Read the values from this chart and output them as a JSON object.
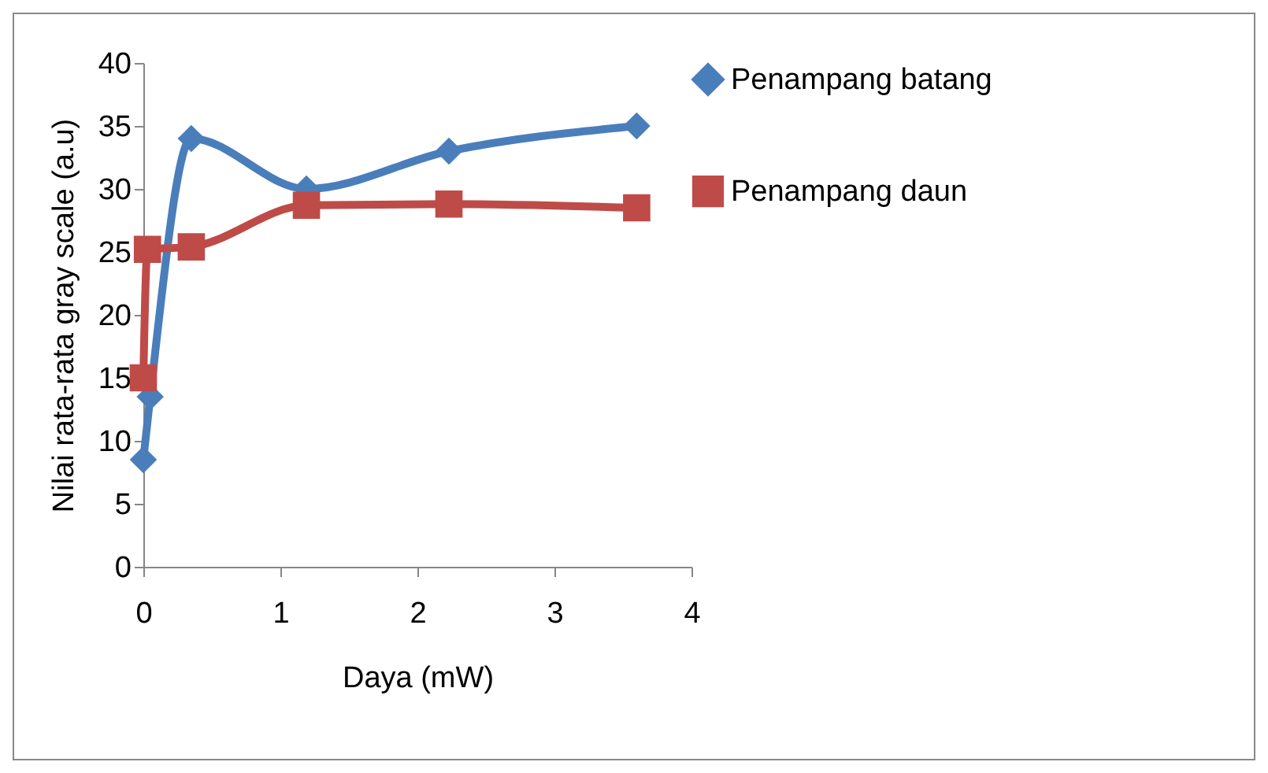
{
  "chart_data": {
    "type": "line",
    "xlabel": "Daya (mW)",
    "ylabel": "Nilai rata-rata gray scale (a.u)",
    "xlim": [
      0,
      4
    ],
    "xticks": [
      0,
      1,
      2,
      3,
      4
    ],
    "ylim": [
      0,
      40
    ],
    "yticks": [
      0,
      5,
      10,
      15,
      20,
      25,
      30,
      35,
      40
    ],
    "grid": false,
    "legend": "right",
    "series": [
      {
        "name": "Penampang batang",
        "color": "#4a7ebb",
        "marker": "diamond",
        "x": [
          0,
          0.05,
          0.35,
          1.19,
          2.23,
          3.6
        ],
        "values": [
          8.5,
          13.5,
          34,
          30,
          33,
          35
        ]
      },
      {
        "name": "Penampang daun",
        "color": "#be4b48",
        "marker": "square",
        "x": [
          0,
          0.03,
          0.35,
          1.19,
          2.23,
          3.6
        ],
        "values": [
          15,
          25.2,
          25.4,
          28.7,
          28.8,
          28.5
        ]
      }
    ]
  }
}
